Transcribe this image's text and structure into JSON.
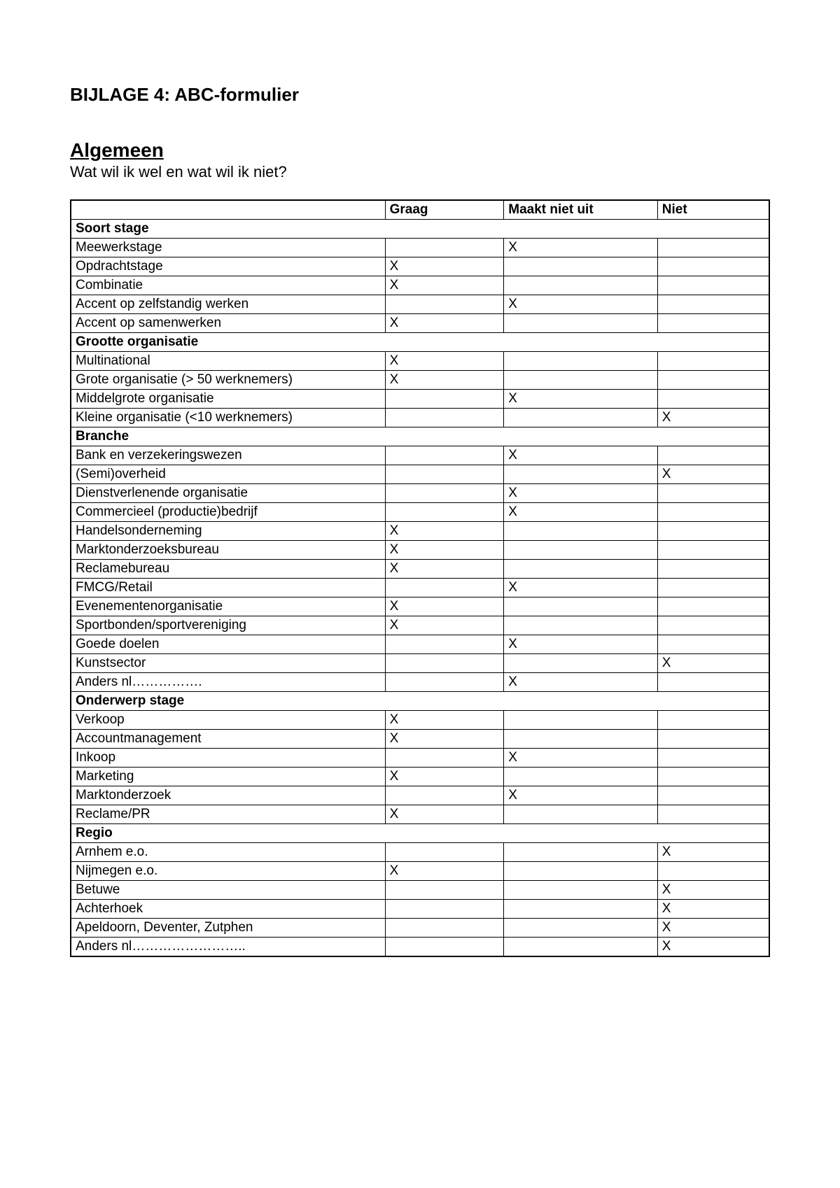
{
  "title": "BIJLAGE 4: ABC-formulier",
  "section_heading": "Algemeen",
  "subtitle": "Wat wil ik wel en wat wil ik niet?",
  "columns": {
    "blank": "",
    "graag": "Graag",
    "maakt_niet_uit": "Maakt niet uit",
    "niet": "Niet"
  },
  "mark": "X",
  "sections": [
    {
      "header": "Soort stage",
      "rows": [
        {
          "label": "Meewerkstage",
          "graag": "",
          "maakt": "X",
          "niet": ""
        },
        {
          "label": "Opdrachtstage",
          "graag": "X",
          "maakt": "",
          "niet": ""
        },
        {
          "label": "Combinatie",
          "graag": "X",
          "maakt": "",
          "niet": ""
        },
        {
          "label": "Accent op zelfstandig werken",
          "graag": "",
          "maakt": "X",
          "niet": ""
        },
        {
          "label": "Accent op samenwerken",
          "graag": "X",
          "maakt": "",
          "niet": ""
        }
      ]
    },
    {
      "header": "Grootte organisatie",
      "rows": [
        {
          "label": "Multinational",
          "graag": "X",
          "maakt": "",
          "niet": ""
        },
        {
          "label": "Grote organisatie (> 50 werknemers)",
          "graag": "X",
          "maakt": "",
          "niet": ""
        },
        {
          "label": "Middelgrote organisatie",
          "graag": "",
          "maakt": "X",
          "niet": ""
        },
        {
          "label": "Kleine organisatie (<10 werknemers)",
          "graag": "",
          "maakt": "",
          "niet": "X"
        }
      ]
    },
    {
      "header": "Branche",
      "rows": [
        {
          "label": "Bank en verzekeringswezen",
          "graag": "",
          "maakt": "X",
          "niet": ""
        },
        {
          "label": "(Semi)overheid",
          "graag": "",
          "maakt": "",
          "niet": "X"
        },
        {
          "label": "Dienstverlenende organisatie",
          "graag": "",
          "maakt": "X",
          "niet": ""
        },
        {
          "label": "Commercieel (productie)bedrijf",
          "graag": "",
          "maakt": "X",
          "niet": ""
        },
        {
          "label": "Handelsonderneming",
          "graag": "X",
          "maakt": "",
          "niet": ""
        },
        {
          "label": "Marktonderzoeksbureau",
          "graag": "X",
          "maakt": "",
          "niet": ""
        },
        {
          "label": "Reclamebureau",
          "graag": "X",
          "maakt": "",
          "niet": ""
        },
        {
          "label": "FMCG/Retail",
          "graag": "",
          "maakt": "X",
          "niet": ""
        },
        {
          "label": "Evenementenorganisatie",
          "graag": "X",
          "maakt": "",
          "niet": ""
        },
        {
          "label": "Sportbonden/sportvereniging",
          "graag": "X",
          "maakt": "",
          "niet": ""
        },
        {
          "label": "Goede doelen",
          "graag": "",
          "maakt": "X",
          "niet": ""
        },
        {
          "label": "Kunstsector",
          "graag": "",
          "maakt": "",
          "niet": "X"
        },
        {
          "label": "Anders nl…………….",
          "graag": "",
          "maakt": "X",
          "niet": ""
        }
      ]
    },
    {
      "header": "Onderwerp stage",
      "rows": [
        {
          "label": "Verkoop",
          "graag": "X",
          "maakt": "",
          "niet": ""
        },
        {
          "label": "Accountmanagement",
          "graag": "X",
          "maakt": "",
          "niet": ""
        },
        {
          "label": "Inkoop",
          "graag": "",
          "maakt": "X",
          "niet": ""
        },
        {
          "label": "Marketing",
          "graag": "X",
          "maakt": "",
          "niet": ""
        },
        {
          "label": "Marktonderzoek",
          "graag": "",
          "maakt": "X",
          "niet": ""
        },
        {
          "label": "Reclame/PR",
          "graag": "X",
          "maakt": "",
          "niet": ""
        }
      ]
    },
    {
      "header": "Regio",
      "rows": [
        {
          "label": "Arnhem e.o.",
          "graag": "",
          "maakt": "",
          "niet": "X"
        },
        {
          "label": "Nijmegen e.o.",
          "graag": "X",
          "maakt": "",
          "niet": ""
        },
        {
          "label": "Betuwe",
          "graag": "",
          "maakt": "",
          "niet": "X"
        },
        {
          "label": "Achterhoek",
          "graag": "",
          "maakt": "",
          "niet": "X"
        },
        {
          "label": "Apeldoorn, Deventer, Zutphen",
          "graag": "",
          "maakt": "",
          "niet": "X"
        },
        {
          "label": "Anders nl……………………..",
          "graag": "",
          "maakt": "",
          "niet": "X"
        }
      ]
    }
  ]
}
